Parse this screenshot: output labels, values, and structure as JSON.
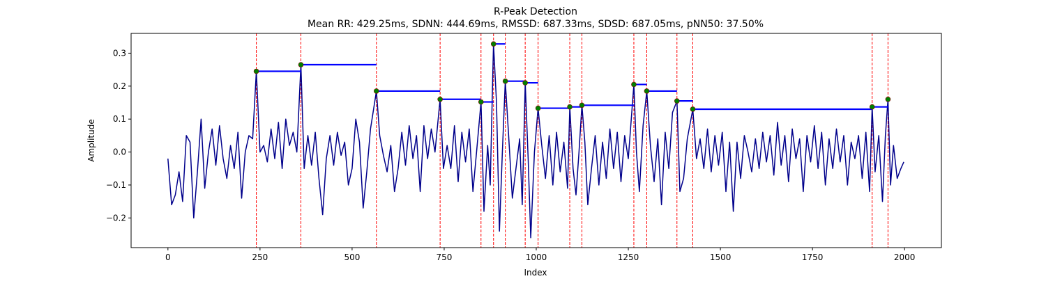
{
  "chart_data": {
    "type": "line",
    "title": "R-Peak Detection",
    "subtitle": "Mean RR: 429.25ms, SDNN: 444.69ms, RMSSD: 687.33ms, SDSD: 687.05ms, pNN50: 37.50%",
    "xlabel": "Index",
    "ylabel": "Amplitude",
    "xlim": [
      -100,
      2100
    ],
    "ylim": [
      -0.29,
      0.36
    ],
    "xticks": [
      0,
      250,
      500,
      750,
      1000,
      1250,
      1500,
      1750,
      2000
    ],
    "xtick_labels": [
      "0",
      "250",
      "500",
      "750",
      "1000",
      "1250",
      "1500",
      "1750",
      "2000"
    ],
    "yticks": [
      -0.2,
      -0.1,
      0.0,
      0.1,
      0.2,
      0.3
    ],
    "ytick_labels": [
      "−0.2",
      "−0.1",
      "0.0",
      "0.1",
      "0.2",
      "0.3"
    ],
    "grid": false,
    "colors": {
      "signal": "#00008b",
      "peak_line": "#ff0000",
      "rr_interval": "#0000ff",
      "peak_marker": "#008000"
    },
    "peaks": [
      {
        "x": 240,
        "y": 0.245
      },
      {
        "x": 361,
        "y": 0.265
      },
      {
        "x": 566,
        "y": 0.185
      },
      {
        "x": 739,
        "y": 0.16
      },
      {
        "x": 850,
        "y": 0.152
      },
      {
        "x": 884,
        "y": 0.328
      },
      {
        "x": 916,
        "y": 0.215
      },
      {
        "x": 970,
        "y": 0.21
      },
      {
        "x": 1005,
        "y": 0.133
      },
      {
        "x": 1091,
        "y": 0.137
      },
      {
        "x": 1124,
        "y": 0.142
      },
      {
        "x": 1265,
        "y": 0.205
      },
      {
        "x": 1300,
        "y": 0.185
      },
      {
        "x": 1382,
        "y": 0.155
      },
      {
        "x": 1425,
        "y": 0.13
      },
      {
        "x": 1912,
        "y": 0.137
      },
      {
        "x": 1955,
        "y": 0.16
      }
    ],
    "rr_segments": [
      {
        "x0": 240,
        "x1": 361,
        "y": 0.245
      },
      {
        "x0": 361,
        "x1": 566,
        "y": 0.265
      },
      {
        "x0": 566,
        "x1": 739,
        "y": 0.185
      },
      {
        "x0": 739,
        "x1": 850,
        "y": 0.16
      },
      {
        "x0": 850,
        "x1": 884,
        "y": 0.152
      },
      {
        "x0": 884,
        "x1": 916,
        "y": 0.328
      },
      {
        "x0": 916,
        "x1": 970,
        "y": 0.215
      },
      {
        "x0": 970,
        "x1": 1005,
        "y": 0.21
      },
      {
        "x0": 1005,
        "x1": 1091,
        "y": 0.133
      },
      {
        "x0": 1091,
        "x1": 1124,
        "y": 0.137
      },
      {
        "x0": 1124,
        "x1": 1265,
        "y": 0.142
      },
      {
        "x0": 1265,
        "x1": 1300,
        "y": 0.205
      },
      {
        "x0": 1300,
        "x1": 1382,
        "y": 0.185
      },
      {
        "x0": 1382,
        "x1": 1425,
        "y": 0.155
      },
      {
        "x0": 1425,
        "x1": 1912,
        "y": 0.13
      },
      {
        "x0": 1912,
        "x1": 1955,
        "y": 0.137
      }
    ],
    "signal": {
      "x": [
        0,
        10,
        20,
        30,
        40,
        50,
        60,
        70,
        80,
        90,
        100,
        110,
        120,
        130,
        140,
        150,
        160,
        170,
        180,
        190,
        200,
        210,
        220,
        230,
        240,
        250,
        260,
        270,
        280,
        290,
        300,
        310,
        320,
        330,
        340,
        350,
        361,
        370,
        380,
        390,
        400,
        410,
        420,
        430,
        440,
        450,
        460,
        470,
        480,
        490,
        500,
        510,
        520,
        530,
        540,
        550,
        566,
        575,
        585,
        595,
        605,
        615,
        625,
        635,
        645,
        655,
        665,
        675,
        685,
        695,
        705,
        715,
        725,
        739,
        748,
        758,
        768,
        778,
        788,
        798,
        808,
        818,
        828,
        838,
        850,
        858,
        868,
        875,
        884,
        892,
        900,
        908,
        916,
        925,
        935,
        945,
        955,
        962,
        970,
        978,
        985,
        995,
        1005,
        1015,
        1025,
        1035,
        1045,
        1055,
        1065,
        1075,
        1085,
        1091,
        1100,
        1108,
        1116,
        1124,
        1132,
        1140,
        1150,
        1160,
        1170,
        1180,
        1190,
        1200,
        1210,
        1220,
        1230,
        1240,
        1250,
        1265,
        1272,
        1280,
        1290,
        1300,
        1310,
        1320,
        1330,
        1340,
        1350,
        1360,
        1370,
        1382,
        1390,
        1400,
        1410,
        1425,
        1435,
        1445,
        1455,
        1465,
        1475,
        1485,
        1495,
        1505,
        1515,
        1525,
        1535,
        1545,
        1555,
        1565,
        1575,
        1585,
        1595,
        1605,
        1615,
        1625,
        1635,
        1645,
        1655,
        1665,
        1675,
        1685,
        1695,
        1705,
        1715,
        1725,
        1735,
        1745,
        1755,
        1765,
        1775,
        1785,
        1795,
        1805,
        1815,
        1825,
        1835,
        1845,
        1855,
        1865,
        1875,
        1885,
        1895,
        1905,
        1912,
        1920,
        1930,
        1940,
        1948,
        1955,
        1962,
        1970,
        1980,
        1990,
        1998
      ],
      "y": [
        -0.02,
        -0.16,
        -0.13,
        -0.06,
        -0.15,
        0.05,
        0.03,
        -0.2,
        -0.06,
        0.1,
        -0.11,
        0.0,
        0.07,
        -0.04,
        0.08,
        -0.02,
        -0.08,
        0.02,
        -0.05,
        0.06,
        -0.14,
        0.0,
        0.05,
        0.04,
        0.245,
        0.0,
        0.02,
        -0.03,
        0.07,
        -0.02,
        0.09,
        -0.05,
        0.1,
        0.02,
        0.06,
        0.0,
        0.265,
        -0.05,
        0.05,
        -0.04,
        0.06,
        -0.08,
        -0.19,
        -0.02,
        0.05,
        -0.04,
        0.06,
        -0.01,
        0.03,
        -0.1,
        -0.05,
        0.1,
        0.03,
        -0.17,
        -0.06,
        0.07,
        0.185,
        0.05,
        -0.01,
        -0.06,
        0.02,
        -0.12,
        -0.05,
        0.06,
        -0.04,
        0.08,
        -0.02,
        0.05,
        -0.12,
        0.08,
        -0.02,
        0.07,
        0.0,
        0.16,
        -0.05,
        0.02,
        -0.05,
        0.08,
        -0.09,
        0.06,
        -0.03,
        0.07,
        -0.12,
        0.0,
        0.152,
        -0.18,
        0.02,
        -0.1,
        0.328,
        0.15,
        -0.24,
        0.0,
        0.215,
        0.05,
        -0.14,
        -0.05,
        0.04,
        -0.16,
        0.21,
        -0.02,
        -0.26,
        0.0,
        0.133,
        0.02,
        -0.08,
        0.05,
        -0.1,
        0.06,
        -0.06,
        0.03,
        -0.11,
        0.137,
        -0.05,
        -0.13,
        0.0,
        0.142,
        0.03,
        -0.16,
        -0.05,
        0.05,
        -0.1,
        0.03,
        -0.08,
        0.07,
        -0.05,
        0.06,
        -0.09,
        0.05,
        -0.02,
        0.205,
        0.0,
        -0.12,
        0.08,
        0.185,
        0.02,
        -0.09,
        0.04,
        -0.16,
        0.06,
        -0.05,
        0.12,
        0.155,
        -0.12,
        -0.08,
        0.04,
        0.13,
        -0.02,
        0.04,
        -0.05,
        0.07,
        -0.06,
        0.05,
        -0.04,
        0.06,
        -0.12,
        0.03,
        -0.18,
        0.03,
        -0.08,
        0.05,
        0.0,
        -0.06,
        0.04,
        -0.05,
        0.06,
        -0.03,
        0.05,
        -0.07,
        0.09,
        -0.04,
        0.05,
        -0.09,
        0.07,
        -0.02,
        0.04,
        -0.12,
        0.05,
        -0.03,
        0.08,
        -0.05,
        0.06,
        -0.1,
        0.04,
        -0.05,
        0.07,
        -0.03,
        0.05,
        -0.1,
        0.03,
        -0.02,
        0.05,
        -0.08,
        0.06,
        -0.12,
        0.137,
        -0.06,
        0.05,
        -0.15,
        0.05,
        0.16,
        -0.1,
        0.02,
        -0.08,
        -0.05,
        -0.03
      ]
    }
  }
}
